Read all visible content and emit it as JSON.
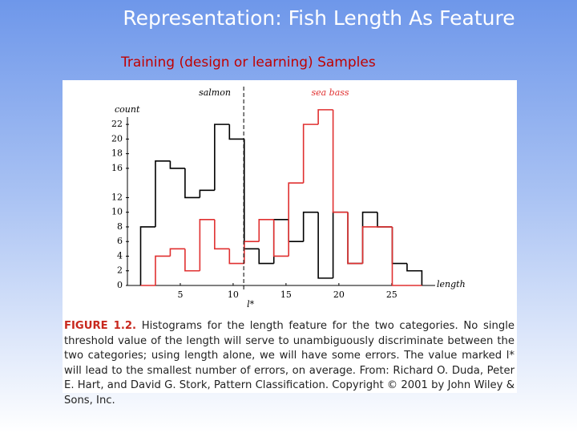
{
  "slide_title": "Representation: Fish Length As Feature",
  "slide_subtitle": "Training (design or learning) Samples",
  "chart_data": {
    "type": "histogram",
    "x_label": "length",
    "y_label": "count",
    "bins": [
      1.25,
      2.65,
      4.05,
      5.45,
      6.85,
      8.25,
      9.65,
      11.05,
      12.45,
      13.85,
      15.25,
      16.65,
      18.05,
      19.45,
      20.85,
      22.25,
      23.65,
      25.05,
      26.45,
      27.85
    ],
    "series": [
      {
        "name": "salmon",
        "color": "#000000",
        "values": [
          8,
          17,
          16,
          12,
          13,
          22,
          20,
          5,
          3,
          9,
          6,
          10,
          1,
          10,
          3,
          10,
          8,
          3,
          2
        ]
      },
      {
        "name": "sea bass",
        "color": "#e03030",
        "values": [
          0,
          4,
          5,
          2,
          9,
          5,
          3,
          6,
          9,
          4,
          14,
          22,
          24,
          10,
          3,
          8,
          8,
          0,
          0
        ]
      }
    ],
    "threshold": {
      "value": 11,
      "label": "l*"
    },
    "xlim": [
      0,
      28.5
    ],
    "ylim": [
      0,
      23
    ],
    "xticks": [
      5,
      10,
      15,
      20,
      25
    ],
    "yticks": [
      0,
      2,
      4,
      6,
      8,
      10,
      12,
      16,
      18,
      20,
      22
    ],
    "caption_label": "FIGURE 1.2.",
    "caption": "Histograms for the length feature for the two categories. No single threshold value of the length will serve to unambiguously discriminate between the two categories; using length alone, we will have some errors. The value marked l* will lead to the smallest number of errors, on average. From: Richard O. Duda, Peter E. Hart, and David G. Stork, Pattern Classification. Copyright © 2001 by John Wiley & Sons, Inc."
  }
}
